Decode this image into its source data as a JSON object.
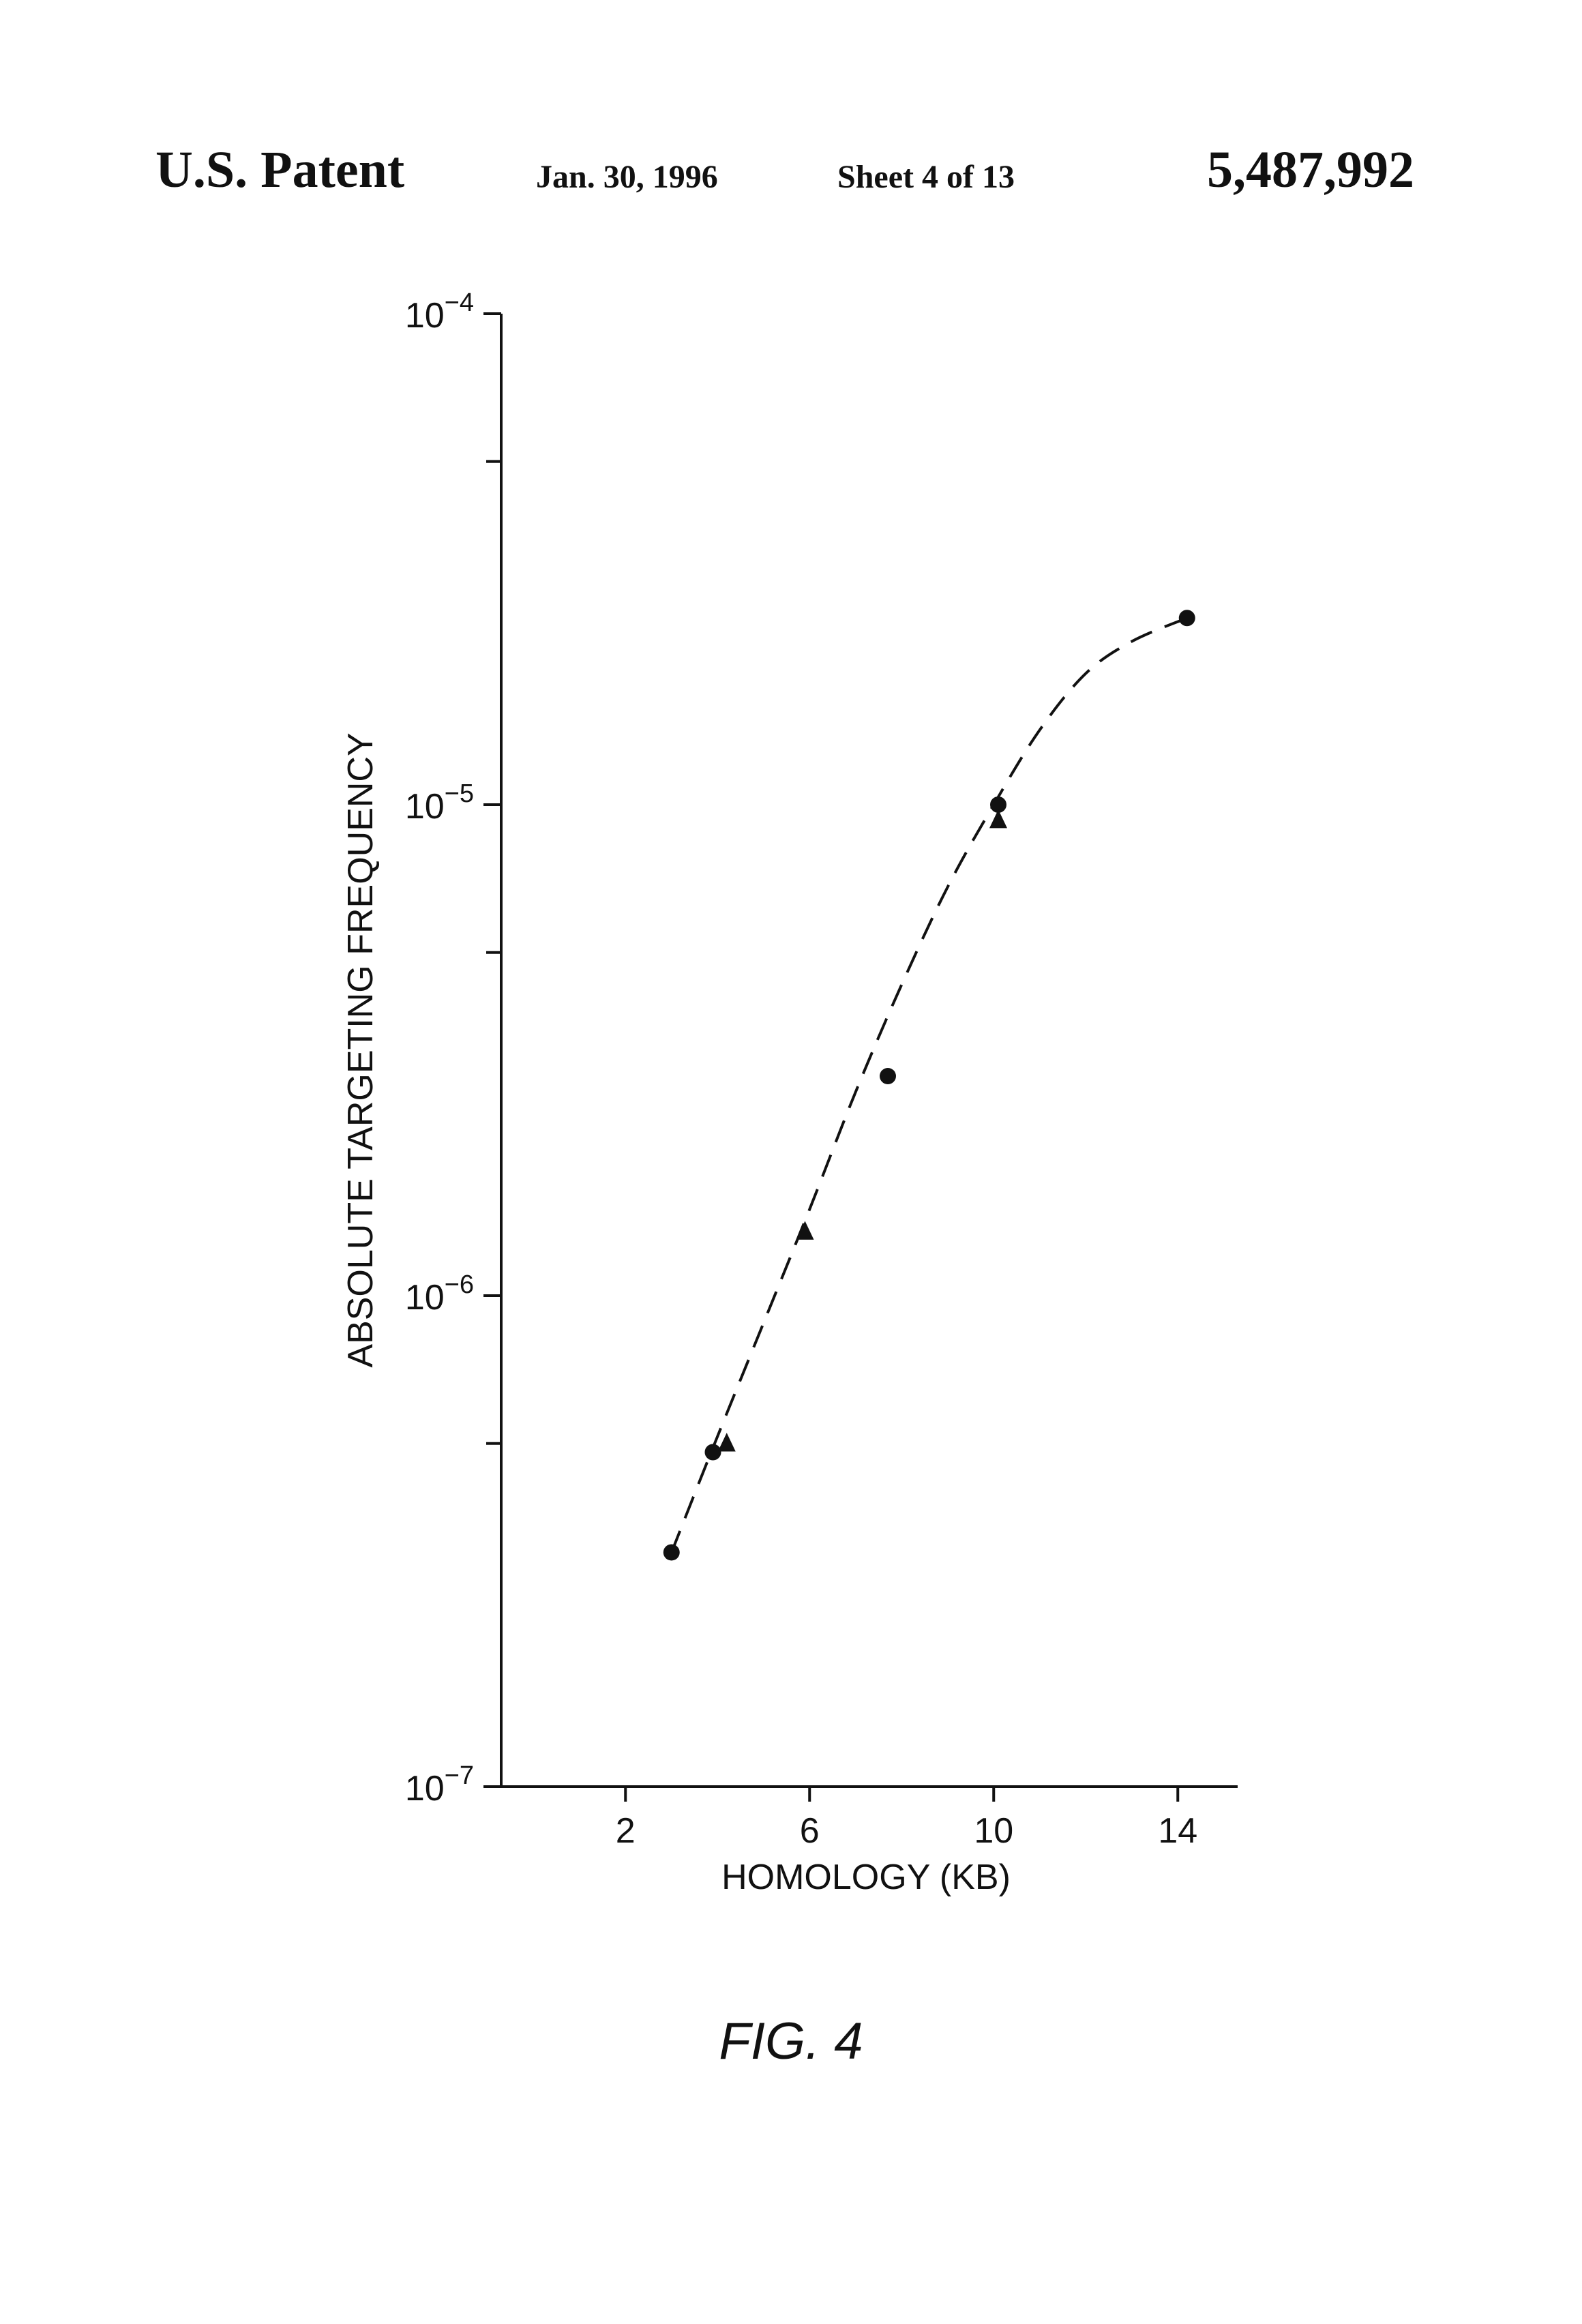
{
  "header": {
    "left": "U.S. Patent",
    "date": "Jan. 30, 1996",
    "sheet": "Sheet 4 of 13",
    "patent_number": "5,487,992"
  },
  "figure": {
    "caption": "FIG. 4"
  },
  "chart_data": {
    "type": "scatter",
    "xlabel": "HOMOLOGY (KB)",
    "ylabel": "ABSOLUTE TARGETING FREQUENCY",
    "x_ticks": [
      2,
      6,
      10,
      14
    ],
    "x_tick_labels": [
      "2",
      "6",
      "10",
      "14"
    ],
    "xlim": [
      -0.7,
      15.3
    ],
    "y_scale": "log",
    "ylim": [
      1e-07,
      0.0001
    ],
    "y_major_ticks": [
      {
        "value": 0.0001,
        "base": "10",
        "exp": "−4"
      },
      {
        "value": 1e-05,
        "base": "10",
        "exp": "−5"
      },
      {
        "value": 1e-06,
        "base": "10",
        "exp": "−6"
      },
      {
        "value": 1e-07,
        "base": "10",
        "exp": "−7"
      }
    ],
    "y_minor_ticks": [
      5e-05,
      5e-06,
      5e-07
    ],
    "grid": false,
    "legend": "none",
    "series": [
      {
        "marker": "circle",
        "points": [
          {
            "x": 3.0,
            "y": 3e-07
          },
          {
            "x": 3.9,
            "y": 4.8e-07
          },
          {
            "x": 7.7,
            "y": 2.8e-06
          },
          {
            "x": 10.1,
            "y": 1e-05
          },
          {
            "x": 14.2,
            "y": 2.4e-05
          }
        ]
      },
      {
        "marker": "triangle",
        "points": [
          {
            "x": 4.2,
            "y": 5e-07
          },
          {
            "x": 5.9,
            "y": 1.35e-06
          },
          {
            "x": 10.1,
            "y": 9.3e-06
          }
        ]
      }
    ],
    "fit_curve": {
      "style": "dashed",
      "points": [
        {
          "x": 3.0,
          "y": 3e-07
        },
        {
          "x": 3.9,
          "y": 4.9e-07
        },
        {
          "x": 5.0,
          "y": 8.8e-07
        },
        {
          "x": 6.0,
          "y": 1.5e-06
        },
        {
          "x": 7.0,
          "y": 2.6e-06
        },
        {
          "x": 8.0,
          "y": 4.3e-06
        },
        {
          "x": 9.0,
          "y": 6.8e-06
        },
        {
          "x": 10.0,
          "y": 1e-05
        },
        {
          "x": 11.0,
          "y": 1.42e-05
        },
        {
          "x": 12.0,
          "y": 1.85e-05
        },
        {
          "x": 13.0,
          "y": 2.15e-05
        },
        {
          "x": 14.2,
          "y": 2.4e-05
        }
      ]
    },
    "colors": {
      "ink": "#111111"
    }
  }
}
